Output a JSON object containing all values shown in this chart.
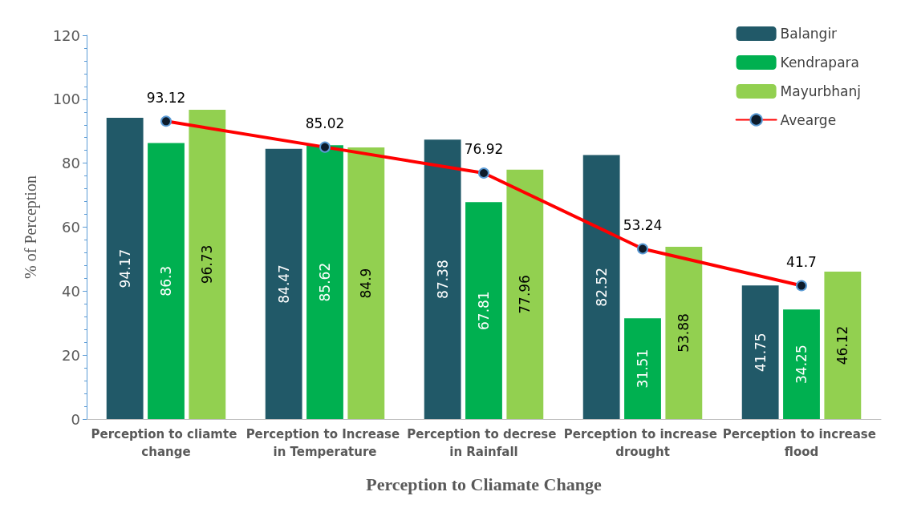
{
  "chart_data": {
    "type": "bar",
    "xlabel": "Perception to Cliamate Change",
    "ylabel": "% of Perception",
    "categories": [
      "Perception to cliamte change",
      "Perception to Increase in Temperature",
      "Perception to decrese in Rainfall",
      "Perception to increase drought",
      "Perception to increase flood"
    ],
    "series": [
      {
        "name": "Balangir",
        "color": "#215968",
        "values": [
          94.17,
          84.47,
          87.38,
          82.52,
          41.75
        ]
      },
      {
        "name": "Kendrapara",
        "color": "#00b050",
        "values": [
          86.3,
          85.62,
          67.81,
          31.51,
          34.25
        ]
      },
      {
        "name": "Mayurbhanj",
        "color": "#92d050",
        "values": [
          96.73,
          84.9,
          77.96,
          53.88,
          46.12
        ]
      },
      {
        "name": "Avearge",
        "type": "line",
        "color": "#ff0000",
        "marker": "circle",
        "line_style": "solid",
        "values": [
          93.12,
          85.02,
          76.92,
          53.24,
          41.7
        ]
      }
    ],
    "ylim": [
      0,
      120
    ],
    "yticks": [
      0,
      20,
      40,
      60,
      80,
      100,
      120
    ],
    "grid": false,
    "legend": "top right",
    "data_labels": true
  }
}
